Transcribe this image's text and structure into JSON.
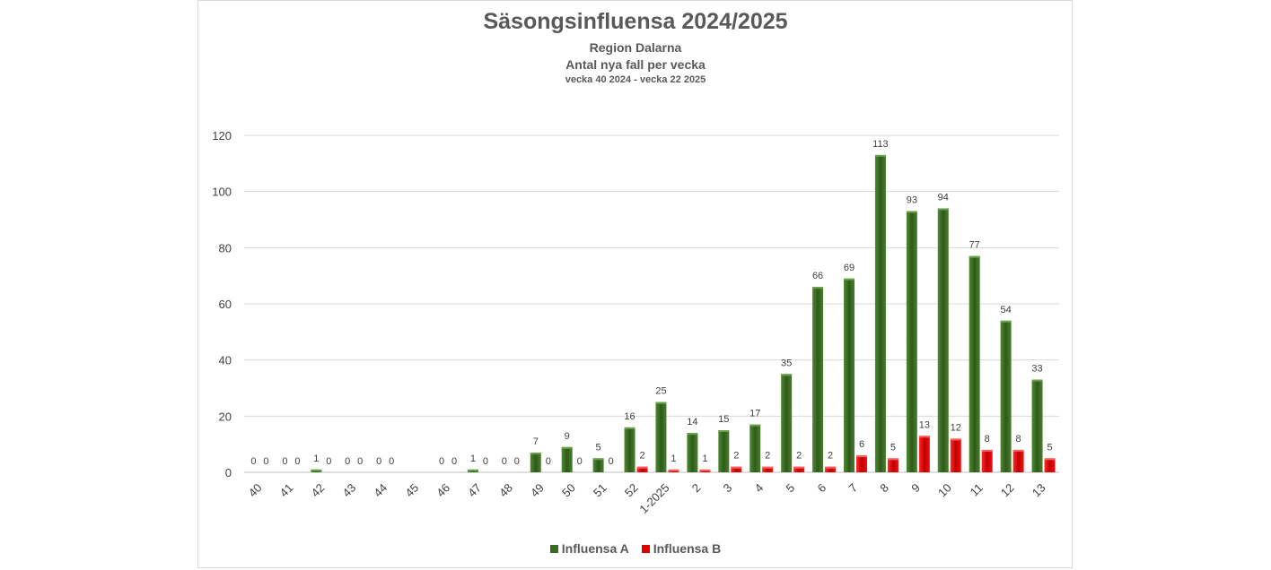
{
  "chart_data": {
    "type": "bar",
    "title": "Säsongsinfluensa 2024/2025",
    "subtitles": [
      "Region Dalarna",
      "Antal nya fall per vecka",
      "vecka 40 2024 - vecka 22 2025"
    ],
    "xlabel": "",
    "ylabel": "",
    "ylim": [
      0,
      120
    ],
    "yticks": [
      0,
      20,
      40,
      60,
      80,
      100,
      120
    ],
    "categories": [
      "40",
      "41",
      "42",
      "43",
      "44",
      "45",
      "46",
      "47",
      "48",
      "49",
      "50",
      "51",
      "52",
      "1-2025",
      "2",
      "3",
      "4",
      "5",
      "6",
      "7",
      "8",
      "9",
      "10",
      "11",
      "12",
      "13"
    ],
    "series": [
      {
        "name": "Influensa A",
        "color": "#3a6b23",
        "values": [
          0,
          0,
          1,
          0,
          0,
          null,
          0,
          1,
          0,
          7,
          9,
          5,
          16,
          25,
          14,
          15,
          17,
          35,
          66,
          69,
          113,
          93,
          94,
          77,
          54,
          33
        ],
        "labels": [
          "0",
          "0",
          "1",
          "0",
          "0",
          "",
          "0",
          "1",
          "0",
          "7",
          "9",
          "5",
          "16",
          "25",
          "14",
          "15",
          "17",
          "35",
          "66",
          "69",
          "113",
          "93",
          "94",
          "77",
          "54",
          "33"
        ]
      },
      {
        "name": "Influensa B",
        "color": "#e00000",
        "values": [
          0,
          0,
          0,
          0,
          0,
          null,
          0,
          0,
          0,
          0,
          0,
          0,
          2,
          1,
          1,
          2,
          2,
          2,
          2,
          6,
          5,
          13,
          12,
          8,
          8,
          5
        ],
        "labels": [
          "0",
          "0",
          "0",
          "0",
          "0",
          "",
          "0",
          "0",
          "0",
          "0",
          "0",
          "0",
          "2",
          "1",
          "1",
          "2",
          "2",
          "2",
          "2",
          "6",
          "5",
          "13",
          "12",
          "8",
          "8",
          "5"
        ]
      }
    ],
    "legend_position": "bottom",
    "gridlines": true
  }
}
